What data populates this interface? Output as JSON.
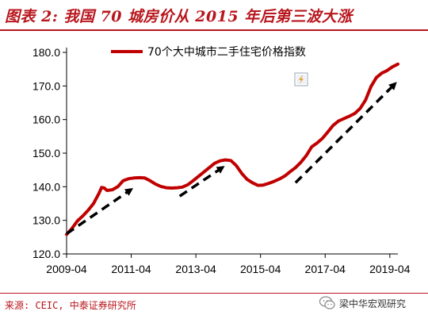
{
  "header": {
    "title": "图表 2: 我国 70 城房价从 2015 年后第三波大涨"
  },
  "footer": {
    "source": "来源: CEIC, 中泰证券研究所",
    "account_name": "梁中华宏观研究"
  },
  "colors": {
    "accent": "#b8161d",
    "series_line": "#c00000",
    "trend_arrow": "#000000"
  },
  "chart_data": {
    "type": "line",
    "x_ticks": [
      "2009-04",
      "2011-04",
      "2013-04",
      "2015-04",
      "2017-04",
      "2019-04"
    ],
    "y_ticks": [
      "120.0",
      "130.0",
      "140.0",
      "150.0",
      "160.0",
      "170.0",
      "180.0"
    ],
    "ylim": [
      120,
      180
    ],
    "xlim": [
      "2009-04",
      "2019-07"
    ],
    "grid": false,
    "legend_position": "top-center",
    "series": [
      {
        "name": "70个大中城市二手住宅价格指数",
        "points": [
          [
            "2009-04",
            125.8
          ],
          [
            "2009-06",
            127.6
          ],
          [
            "2009-08",
            129.8
          ],
          [
            "2009-10",
            131.3
          ],
          [
            "2009-12",
            133.0
          ],
          [
            "2010-02",
            135.0
          ],
          [
            "2010-04",
            138.0
          ],
          [
            "2010-05",
            139.8
          ],
          [
            "2010-06",
            139.6
          ],
          [
            "2010-07",
            138.9
          ],
          [
            "2010-09",
            139.1
          ],
          [
            "2010-11",
            140.0
          ],
          [
            "2011-01",
            141.8
          ],
          [
            "2011-03",
            142.4
          ],
          [
            "2011-05",
            142.6
          ],
          [
            "2011-07",
            142.7
          ],
          [
            "2011-09",
            142.6
          ],
          [
            "2011-11",
            141.8
          ],
          [
            "2012-01",
            140.8
          ],
          [
            "2012-03",
            140.1
          ],
          [
            "2012-05",
            139.7
          ],
          [
            "2012-07",
            139.6
          ],
          [
            "2012-09",
            139.7
          ],
          [
            "2012-11",
            139.9
          ],
          [
            "2013-01",
            140.6
          ],
          [
            "2013-03",
            141.8
          ],
          [
            "2013-05",
            143.1
          ],
          [
            "2013-07",
            144.4
          ],
          [
            "2013-09",
            145.7
          ],
          [
            "2013-11",
            147.0
          ],
          [
            "2014-01",
            147.7
          ],
          [
            "2014-03",
            148.0
          ],
          [
            "2014-05",
            147.8
          ],
          [
            "2014-07",
            146.3
          ],
          [
            "2014-09",
            144.0
          ],
          [
            "2014-11",
            142.2
          ],
          [
            "2015-01",
            141.2
          ],
          [
            "2015-03",
            140.4
          ],
          [
            "2015-05",
            140.5
          ],
          [
            "2015-07",
            141.0
          ],
          [
            "2015-09",
            141.6
          ],
          [
            "2015-11",
            142.3
          ],
          [
            "2016-01",
            143.2
          ],
          [
            "2016-03",
            144.5
          ],
          [
            "2016-05",
            145.7
          ],
          [
            "2016-07",
            147.3
          ],
          [
            "2016-09",
            149.3
          ],
          [
            "2016-11",
            151.9
          ],
          [
            "2017-01",
            153.0
          ],
          [
            "2017-03",
            154.4
          ],
          [
            "2017-05",
            156.3
          ],
          [
            "2017-07",
            158.3
          ],
          [
            "2017-09",
            159.6
          ],
          [
            "2017-11",
            160.3
          ],
          [
            "2018-01",
            161.0
          ],
          [
            "2018-03",
            161.8
          ],
          [
            "2018-05",
            163.3
          ],
          [
            "2018-07",
            165.8
          ],
          [
            "2018-09",
            169.8
          ],
          [
            "2018-11",
            172.5
          ],
          [
            "2019-01",
            173.8
          ],
          [
            "2019-03",
            174.6
          ],
          [
            "2019-05",
            175.7
          ],
          [
            "2019-07",
            176.5
          ]
        ]
      }
    ],
    "annotations": [
      {
        "kind": "dashed-arrow",
        "from": [
          "2009-04",
          126.0
        ],
        "to": [
          "2011-04",
          139.2
        ]
      },
      {
        "kind": "dashed-arrow",
        "from": [
          "2012-10",
          137.2
        ],
        "to": [
          "2014-02",
          145.8
        ]
      },
      {
        "kind": "dashed-arrow",
        "from": [
          "2016-05",
          141.2
        ],
        "to": [
          "2019-06",
          170.7
        ]
      }
    ]
  }
}
